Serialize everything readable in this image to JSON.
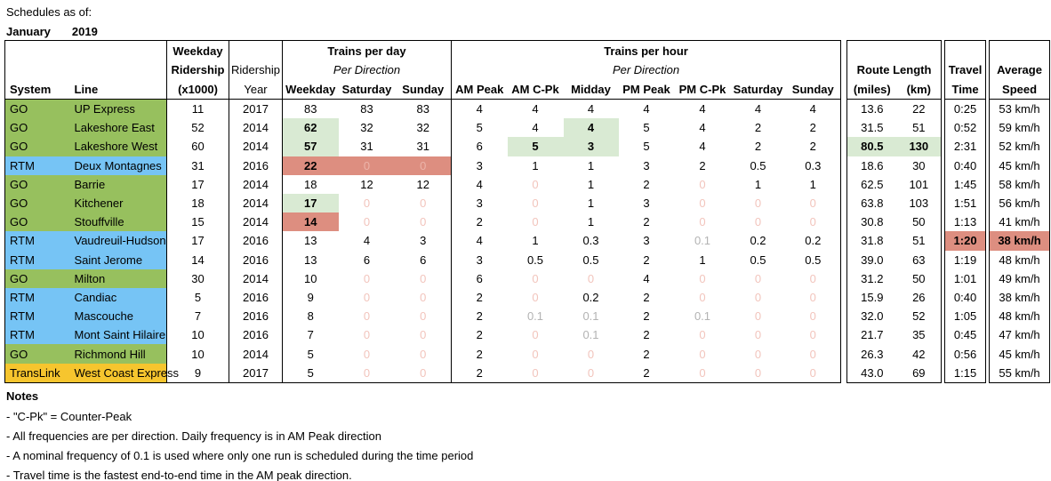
{
  "title": {
    "line1": "Schedules as of:",
    "month": "January",
    "year": "2019"
  },
  "colors": {
    "system": {
      "GO": "#97c05e",
      "RTM": "#76c4f5",
      "TransLink": "#f6c52e"
    },
    "highlight_green": "#d9ead3",
    "highlight_red": "#dd8e80",
    "highlight_red_text": "#ecb4a9",
    "zero_text": "#f2c4bc",
    "nominal_text": "#b3b3b3",
    "border": "#000000"
  },
  "header": {
    "system": "System",
    "line": "Line",
    "ridership": {
      "l1": "Weekday",
      "l2": "Ridership",
      "l3": "(x1000)"
    },
    "ridership_year": {
      "l1": "Ridership",
      "l2": "Year"
    },
    "tpd": {
      "title": "Trains per day",
      "subtitle": "Per Direction",
      "cols": [
        "Weekday",
        "Saturday",
        "Sunday"
      ]
    },
    "tph": {
      "title": "Trains per hour",
      "subtitle": "Per Direction",
      "cols": [
        "AM Peak",
        "AM C-Pk",
        "Midday",
        "PM Peak",
        "PM C-Pk",
        "Saturday",
        "Sunday"
      ]
    },
    "route": {
      "title": "Route Length",
      "cols": [
        "(miles)",
        "(km)"
      ]
    },
    "travel": {
      "l1": "Travel",
      "l2": "Time"
    },
    "speed": {
      "l1": "Average",
      "l2": "Speed"
    }
  },
  "rows": [
    {
      "system": "GO",
      "line": "UP Express",
      "values": [
        "11",
        "2017",
        "83",
        "83",
        "83",
        "4",
        "4",
        "4",
        "4",
        "4",
        "4",
        "4",
        "13.6",
        "22",
        "0:25",
        "53 km/h"
      ]
    },
    {
      "system": "GO",
      "line": "Lakeshore East",
      "values": [
        "52",
        "2014",
        [
          "62",
          "gb"
        ],
        "32",
        "32",
        "5",
        "4",
        [
          "4",
          "gb"
        ],
        "5",
        "4",
        "2",
        "2",
        "31.5",
        "51",
        "0:52",
        "59 km/h"
      ]
    },
    {
      "system": "GO",
      "line": "Lakeshore West",
      "values": [
        "60",
        "2014",
        [
          "57",
          "gb"
        ],
        "31",
        "31",
        "6",
        [
          "5",
          "gb"
        ],
        [
          "3",
          "gb"
        ],
        "5",
        "4",
        "2",
        "2",
        [
          "80.5",
          "gb"
        ],
        [
          "130",
          "gb"
        ],
        "2:31",
        "52 km/h"
      ]
    },
    {
      "system": "RTM",
      "line": "Deux Montagnes",
      "values": [
        "31",
        "2016",
        [
          "22",
          "rb"
        ],
        [
          "0",
          "rz"
        ],
        [
          "0",
          "rz"
        ],
        "3",
        "1",
        "1",
        "3",
        "2",
        "0.5",
        "0.3",
        "18.6",
        "30",
        "0:40",
        "45 km/h"
      ]
    },
    {
      "system": "GO",
      "line": "Barrie",
      "values": [
        "17",
        "2014",
        "18",
        "12",
        "12",
        "4",
        [
          "0",
          "z"
        ],
        "1",
        "2",
        [
          "0",
          "z"
        ],
        "1",
        "1",
        "62.5",
        "101",
        "1:45",
        "58 km/h"
      ]
    },
    {
      "system": "GO",
      "line": "Kitchener",
      "values": [
        "18",
        "2014",
        [
          "17",
          "gb"
        ],
        [
          "0",
          "z"
        ],
        [
          "0",
          "z"
        ],
        "3",
        [
          "0",
          "z"
        ],
        "1",
        "3",
        [
          "0",
          "z"
        ],
        [
          "0",
          "z"
        ],
        [
          "0",
          "z"
        ],
        "63.8",
        "103",
        "1:51",
        "56 km/h"
      ]
    },
    {
      "system": "GO",
      "line": "Stouffville",
      "values": [
        "15",
        "2014",
        [
          "14",
          "rb"
        ],
        [
          "0",
          "z"
        ],
        [
          "0",
          "z"
        ],
        "2",
        [
          "0",
          "z"
        ],
        "1",
        "2",
        [
          "0",
          "z"
        ],
        [
          "0",
          "z"
        ],
        [
          "0",
          "z"
        ],
        "30.8",
        "50",
        "1:13",
        "41 km/h"
      ]
    },
    {
      "system": "RTM",
      "line": "Vaudreuil-Hudson",
      "values": [
        "17",
        "2016",
        "13",
        "4",
        "3",
        "4",
        "1",
        "0.3",
        "3",
        [
          "0.1",
          "gy"
        ],
        "0.2",
        "0.2",
        "31.8",
        "51",
        [
          "1:20",
          "rb"
        ],
        [
          "38 km/h",
          "rb"
        ]
      ]
    },
    {
      "system": "RTM",
      "line": "Saint Jerome",
      "values": [
        "14",
        "2016",
        "13",
        "6",
        "6",
        "3",
        "0.5",
        "0.5",
        "2",
        "1",
        "0.5",
        "0.5",
        "39.0",
        "63",
        "1:19",
        "48 km/h"
      ]
    },
    {
      "system": "GO",
      "line": "Milton",
      "values": [
        "30",
        "2014",
        "10",
        [
          "0",
          "z"
        ],
        [
          "0",
          "z"
        ],
        "6",
        [
          "0",
          "z"
        ],
        [
          "0",
          "z"
        ],
        "4",
        [
          "0",
          "z"
        ],
        [
          "0",
          "z"
        ],
        [
          "0",
          "z"
        ],
        "31.2",
        "50",
        "1:01",
        "49 km/h"
      ]
    },
    {
      "system": "RTM",
      "line": "Candiac",
      "values": [
        "5",
        "2016",
        "9",
        [
          "0",
          "z"
        ],
        [
          "0",
          "z"
        ],
        "2",
        [
          "0",
          "z"
        ],
        "0.2",
        "2",
        [
          "0",
          "z"
        ],
        [
          "0",
          "z"
        ],
        [
          "0",
          "z"
        ],
        "15.9",
        "26",
        "0:40",
        "38 km/h"
      ]
    },
    {
      "system": "RTM",
      "line": "Mascouche",
      "values": [
        "7",
        "2016",
        "8",
        [
          "0",
          "z"
        ],
        [
          "0",
          "z"
        ],
        "2",
        [
          "0.1",
          "gy"
        ],
        [
          "0.1",
          "gy"
        ],
        "2",
        [
          "0.1",
          "gy"
        ],
        [
          "0",
          "z"
        ],
        [
          "0",
          "z"
        ],
        "32.0",
        "52",
        "1:05",
        "48 km/h"
      ]
    },
    {
      "system": "RTM",
      "line": "Mont Saint Hilaire",
      "values": [
        "10",
        "2016",
        "7",
        [
          "0",
          "z"
        ],
        [
          "0",
          "z"
        ],
        "2",
        [
          "0",
          "z"
        ],
        [
          "0.1",
          "gy"
        ],
        "2",
        [
          "0",
          "z"
        ],
        [
          "0",
          "z"
        ],
        [
          "0",
          "z"
        ],
        "21.7",
        "35",
        "0:45",
        "47 km/h"
      ]
    },
    {
      "system": "GO",
      "line": "Richmond Hill",
      "values": [
        "10",
        "2014",
        "5",
        [
          "0",
          "z"
        ],
        [
          "0",
          "z"
        ],
        "2",
        [
          "0",
          "z"
        ],
        [
          "0",
          "z"
        ],
        "2",
        [
          "0",
          "z"
        ],
        [
          "0",
          "z"
        ],
        [
          "0",
          "z"
        ],
        "26.3",
        "42",
        "0:56",
        "45 km/h"
      ]
    },
    {
      "system": "TransLink",
      "line": "West Coast Express",
      "values": [
        "9",
        "2017",
        "5",
        [
          "0",
          "z"
        ],
        [
          "0",
          "z"
        ],
        "2",
        [
          "0",
          "z"
        ],
        [
          "0",
          "z"
        ],
        "2",
        [
          "0",
          "z"
        ],
        [
          "0",
          "z"
        ],
        [
          "0",
          "z"
        ],
        "43.0",
        "69",
        "1:15",
        "55 km/h"
      ]
    }
  ],
  "notes": {
    "title": "Notes",
    "items": [
      "- \"C-Pk\" = Counter-Peak",
      "- All frequencies are per direction.  Daily frequency is in AM Peak direction",
      "- A nominal frequency of 0.1 is used where only one run is scheduled during the time period",
      "- Travel time is the fastest end-to-end time in the AM peak direction."
    ]
  }
}
